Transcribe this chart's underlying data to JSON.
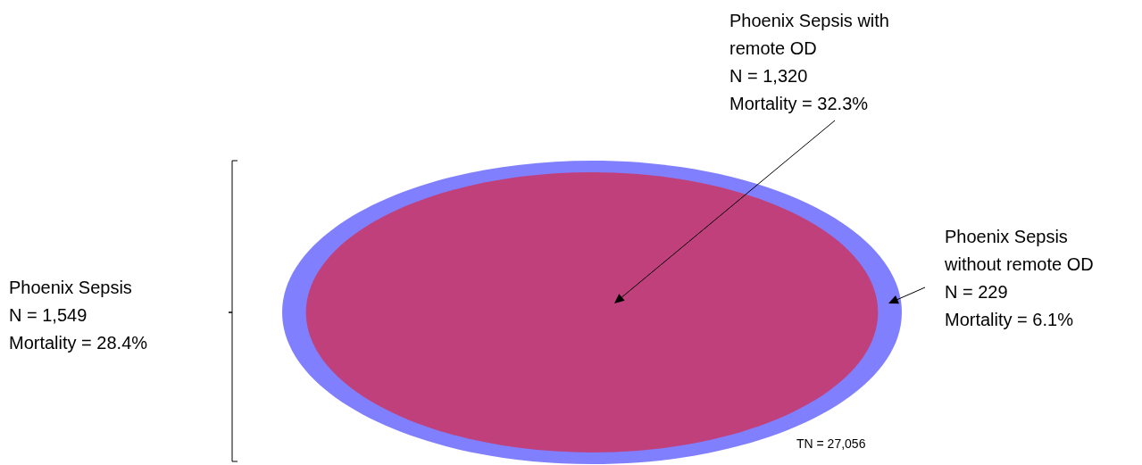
{
  "chart_data": {
    "type": "other",
    "categories": [
      "Phoenix Sepsis",
      "Phoenix Sepsis with remote OD",
      "Phoenix Sepsis without remote OD"
    ],
    "values": [
      1549,
      1320,
      229
    ],
    "value_labels": [
      "N = 1,549\nMortality = 28.4%",
      "N = 1,320\nMortality = 32.3%",
      "N = 229\nMortality = 6.1%"
    ],
    "colors": [
      "#000000",
      "#c0407c",
      "#8080ff"
    ],
    "annotations": [
      "TN = 27,056"
    ]
  }
}
